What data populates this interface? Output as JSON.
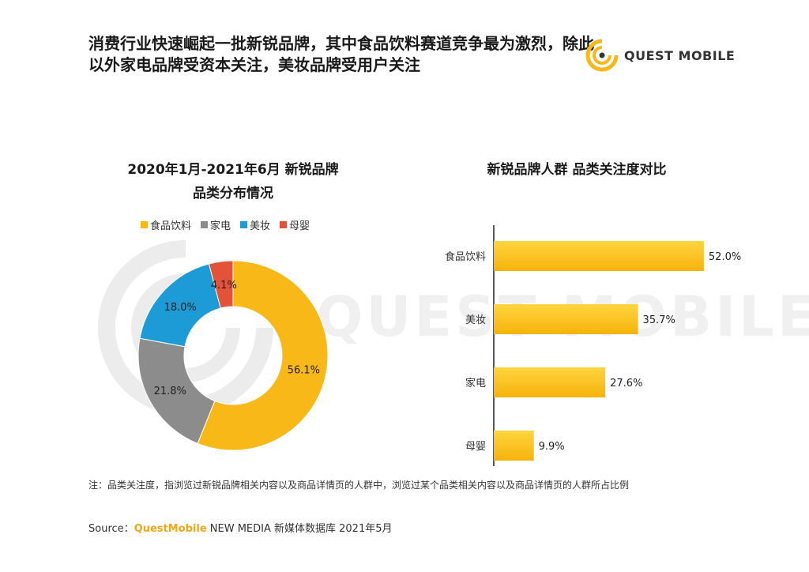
{
  "header": {
    "title": "消费行业快速崛起一批新锐品牌，其中食品饮料赛道竞争最为激烈，除此以外家电品牌受资本关注，美妆品牌受用户关注",
    "brand": "QUEST MOBILE",
    "watermark": "QUEST MOBILE"
  },
  "colors": {
    "food": "#f7b818",
    "appliance": "#8c8c8c",
    "beauty": "#1d9bd6",
    "baby": "#e2533a",
    "bar": "#f9c21d"
  },
  "chart_data": [
    {
      "type": "pie",
      "title_line1": "2020年1月-2021年6月 新锐品牌",
      "title_line2": "品类分布情况",
      "legend_position": "top",
      "legend": [
        "食品饮料",
        "家电",
        "美妆",
        "母婴"
      ],
      "slices": [
        {
          "name": "食品饮料",
          "value": 56.1,
          "label": "56.1%"
        },
        {
          "name": "家电",
          "value": 21.8,
          "label": "21.8%"
        },
        {
          "name": "美妆",
          "value": 18.0,
          "label": "18.0%"
        },
        {
          "name": "母婴",
          "value": 4.1,
          "label": "4.1%"
        }
      ]
    },
    {
      "type": "bar",
      "orientation": "horizontal",
      "title": "新锐品牌人群 品类关注度对比",
      "categories": [
        "食品饮料",
        "美妆",
        "家电",
        "母婴"
      ],
      "values": [
        52.0,
        35.7,
        27.6,
        9.9
      ],
      "labels": [
        "52.0%",
        "35.7%",
        "27.6%",
        "9.9%"
      ],
      "xlim": [
        0,
        60
      ],
      "grid": false
    }
  ],
  "footer": {
    "note": "注：品类关注度，指浏览过新锐品牌相关内容以及商品详情页的人群中，浏览过某个品类相关内容以及商品详情页的人群所占比例",
    "source_prefix": "Source：",
    "source_brand": "QuestMobile",
    "source_rest": " NEW MEDIA 新媒体数据库 2021年5月"
  }
}
